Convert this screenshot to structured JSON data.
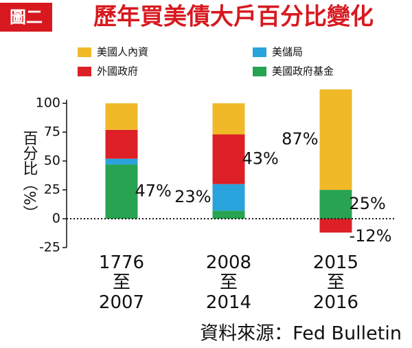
{
  "chart_data": {
    "type": "stacked_bar",
    "tag": "圖二",
    "title": "歷年買美債大戶百分比變化",
    "y_label": "百分比（%）",
    "source": "資料來源：Fed Bulletin",
    "categories": [
      [
        "1776",
        "至",
        "2007"
      ],
      [
        "2008",
        "至",
        "2014"
      ],
      [
        "2015",
        "至",
        "2016"
      ]
    ],
    "series": [
      {
        "name": "美國人內資",
        "color": "#f0b928",
        "values": [
          23,
          27,
          87
        ],
        "value_labels": [
          null,
          null,
          "87%"
        ]
      },
      {
        "name": "外國政府",
        "color": "#dc2026",
        "values": [
          25,
          43,
          -12
        ],
        "value_labels": [
          null,
          "43%",
          "-12%"
        ]
      },
      {
        "name": "美儲局",
        "color": "#29a3dc",
        "values": [
          5,
          23,
          0
        ],
        "value_labels": [
          null,
          "23%",
          null
        ]
      },
      {
        "name": "美國政府基金",
        "color": "#27a352",
        "values": [
          47,
          7,
          25
        ],
        "value_labels": [
          "47%",
          null,
          "25%"
        ]
      }
    ],
    "ylim": [
      -25,
      115
    ],
    "yticks": [
      -25,
      0,
      25,
      50,
      75,
      100
    ]
  }
}
